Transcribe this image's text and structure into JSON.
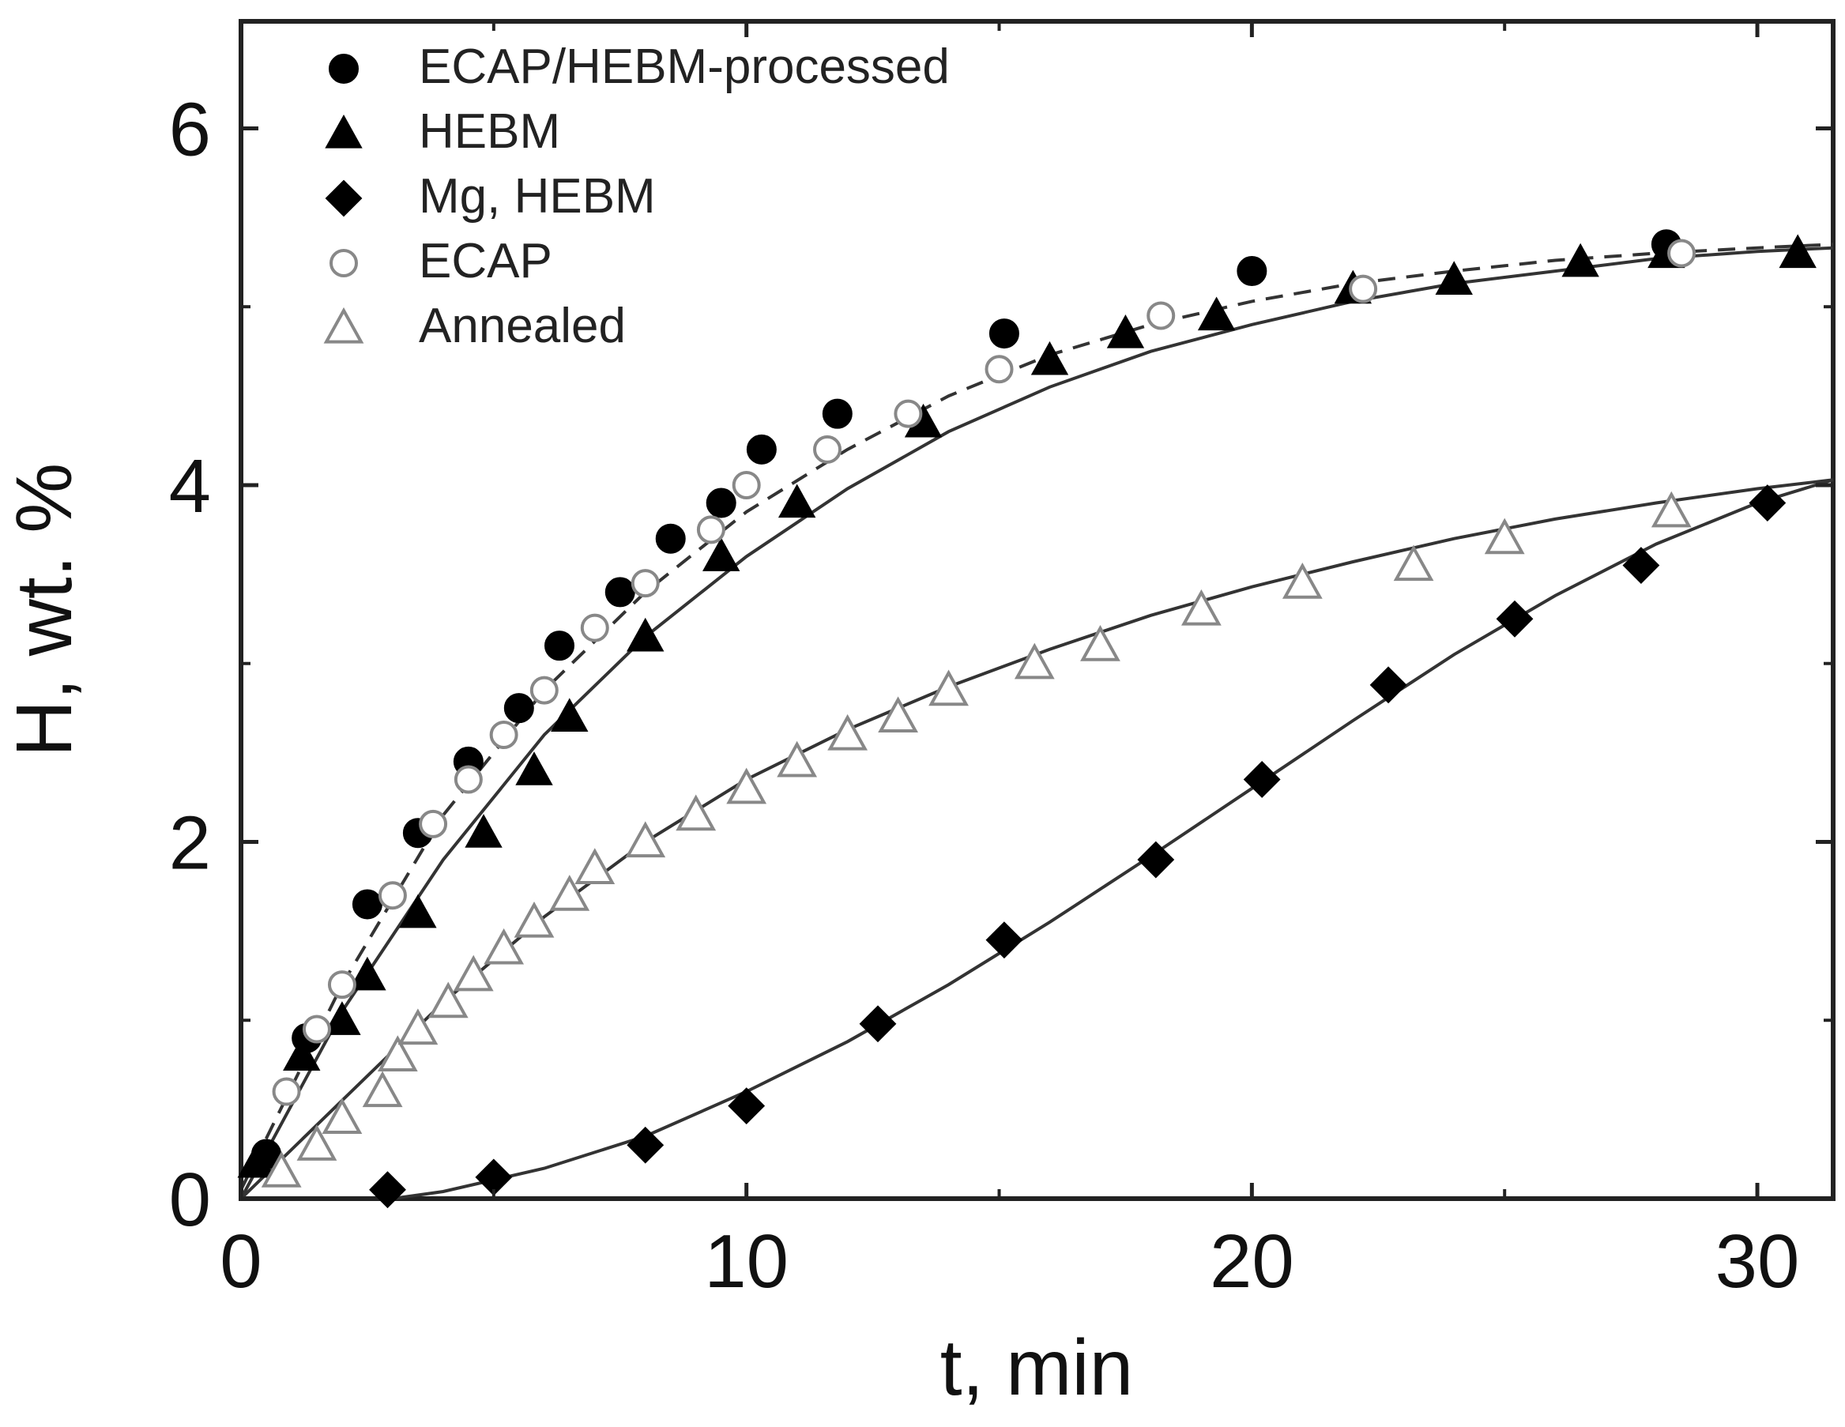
{
  "chart_data": {
    "type": "scatter",
    "xlabel": "t, min",
    "ylabel": "H, wt. %",
    "xlim": [
      0,
      31.5
    ],
    "ylim": [
      0,
      6.6
    ],
    "x_ticks": [
      "0",
      "10",
      "20",
      "30"
    ],
    "y_ticks": [
      "0",
      "2",
      "4",
      "6"
    ],
    "legend_position": "top-left",
    "series": [
      {
        "name": "ECAP/HEBM-processed",
        "marker": "filled-circle",
        "color": "#000000",
        "points": [
          [
            0.5,
            0.25
          ],
          [
            1.3,
            0.9
          ],
          [
            2.5,
            1.65
          ],
          [
            3.5,
            2.05
          ],
          [
            4.5,
            2.45
          ],
          [
            5.5,
            2.75
          ],
          [
            6.3,
            3.1
          ],
          [
            7.5,
            3.4
          ],
          [
            8.5,
            3.7
          ],
          [
            9.5,
            3.9
          ],
          [
            10.3,
            4.2
          ],
          [
            11.8,
            4.4
          ],
          [
            15.1,
            4.85
          ],
          [
            20,
            5.2
          ],
          [
            28.2,
            5.35
          ]
        ]
      },
      {
        "name": "HEBM",
        "marker": "filled-triangle",
        "color": "#000000",
        "points": [
          [
            0.3,
            0.2
          ],
          [
            1.2,
            0.8
          ],
          [
            2,
            1.0
          ],
          [
            2.5,
            1.25
          ],
          [
            3.5,
            1.6
          ],
          [
            4.8,
            2.05
          ],
          [
            5.8,
            2.4
          ],
          [
            6.5,
            2.7
          ],
          [
            8,
            3.15
          ],
          [
            9.5,
            3.6
          ],
          [
            11,
            3.9
          ],
          [
            13.5,
            4.35
          ],
          [
            16,
            4.7
          ],
          [
            17.5,
            4.85
          ],
          [
            19.3,
            4.95
          ],
          [
            22,
            5.1
          ],
          [
            24,
            5.15
          ],
          [
            26.5,
            5.25
          ],
          [
            28.2,
            5.3
          ],
          [
            30.8,
            5.3
          ]
        ]
      },
      {
        "name": "Mg, HEBM",
        "marker": "filled-diamond",
        "color": "#000000",
        "points": [
          [
            2.9,
            0.05
          ],
          [
            5,
            0.12
          ],
          [
            8,
            0.3
          ],
          [
            10,
            0.52
          ],
          [
            12.6,
            0.98
          ],
          [
            15.1,
            1.45
          ],
          [
            18.1,
            1.9
          ],
          [
            20.2,
            2.35
          ],
          [
            22.7,
            2.88
          ],
          [
            25.2,
            3.25
          ],
          [
            27.7,
            3.55
          ],
          [
            30.2,
            3.9
          ]
        ]
      },
      {
        "name": "ECAP",
        "marker": "open-circle",
        "color": "#888888",
        "points": [
          [
            0.9,
            0.6
          ],
          [
            1.5,
            0.95
          ],
          [
            2,
            1.2
          ],
          [
            3,
            1.7
          ],
          [
            3.8,
            2.1
          ],
          [
            4.5,
            2.35
          ],
          [
            5.2,
            2.6
          ],
          [
            6,
            2.85
          ],
          [
            7,
            3.2
          ],
          [
            8,
            3.45
          ],
          [
            9.3,
            3.75
          ],
          [
            10,
            4.0
          ],
          [
            11.6,
            4.2
          ],
          [
            13.2,
            4.4
          ],
          [
            15,
            4.65
          ],
          [
            18.2,
            4.95
          ],
          [
            22.2,
            5.1
          ],
          [
            28.5,
            5.3
          ]
        ]
      },
      {
        "name": "Annealed",
        "marker": "open-triangle",
        "color": "#888888",
        "points": [
          [
            0.8,
            0.15
          ],
          [
            1.5,
            0.3
          ],
          [
            2,
            0.45
          ],
          [
            2.8,
            0.6
          ],
          [
            3.1,
            0.8
          ],
          [
            3.5,
            0.95
          ],
          [
            4.1,
            1.1
          ],
          [
            4.6,
            1.25
          ],
          [
            5.2,
            1.4
          ],
          [
            5.8,
            1.55
          ],
          [
            6.5,
            1.7
          ],
          [
            7,
            1.85
          ],
          [
            8,
            2.0
          ],
          [
            9,
            2.15
          ],
          [
            10,
            2.3
          ],
          [
            11,
            2.45
          ],
          [
            12,
            2.6
          ],
          [
            13,
            2.7
          ],
          [
            14,
            2.85
          ],
          [
            15.7,
            3.0
          ],
          [
            17,
            3.1
          ],
          [
            19,
            3.3
          ],
          [
            21,
            3.45
          ],
          [
            23.2,
            3.55
          ],
          [
            25,
            3.7
          ],
          [
            28.3,
            3.85
          ]
        ]
      }
    ],
    "fit_curves": [
      {
        "style": "solid",
        "points": [
          [
            0,
            0
          ],
          [
            2,
            1.05
          ],
          [
            4,
            1.9
          ],
          [
            6,
            2.6
          ],
          [
            8,
            3.15
          ],
          [
            10,
            3.6
          ],
          [
            12,
            3.98
          ],
          [
            14,
            4.3
          ],
          [
            16,
            4.55
          ],
          [
            18,
            4.75
          ],
          [
            20,
            4.9
          ],
          [
            22,
            5.03
          ],
          [
            24,
            5.13
          ],
          [
            26,
            5.2
          ],
          [
            28,
            5.27
          ],
          [
            30,
            5.31
          ],
          [
            31.5,
            5.33
          ]
        ]
      },
      {
        "style": "dashed",
        "points": [
          [
            0,
            0.05
          ],
          [
            2,
            1.2
          ],
          [
            4,
            2.15
          ],
          [
            6,
            2.85
          ],
          [
            8,
            3.4
          ],
          [
            10,
            3.85
          ],
          [
            12,
            4.2
          ],
          [
            14,
            4.5
          ],
          [
            16,
            4.73
          ],
          [
            18,
            4.9
          ],
          [
            20,
            5.03
          ],
          [
            22,
            5.13
          ],
          [
            24,
            5.2
          ],
          [
            26,
            5.26
          ],
          [
            28,
            5.3
          ],
          [
            30,
            5.33
          ],
          [
            31.5,
            5.35
          ]
        ]
      },
      {
        "style": "solid",
        "points": [
          [
            0,
            0
          ],
          [
            2,
            0.55
          ],
          [
            4,
            1.1
          ],
          [
            6,
            1.58
          ],
          [
            8,
            2.0
          ],
          [
            10,
            2.35
          ],
          [
            12,
            2.63
          ],
          [
            14,
            2.87
          ],
          [
            16,
            3.08
          ],
          [
            18,
            3.27
          ],
          [
            20,
            3.43
          ],
          [
            22,
            3.57
          ],
          [
            24,
            3.7
          ],
          [
            26,
            3.81
          ],
          [
            28,
            3.9
          ],
          [
            30,
            3.98
          ],
          [
            31.5,
            4.03
          ]
        ]
      },
      {
        "style": "solid",
        "points": [
          [
            3,
            0
          ],
          [
            4,
            0.04
          ],
          [
            6,
            0.17
          ],
          [
            8,
            0.35
          ],
          [
            10,
            0.6
          ],
          [
            12,
            0.88
          ],
          [
            14,
            1.2
          ],
          [
            16,
            1.55
          ],
          [
            18,
            1.92
          ],
          [
            20,
            2.3
          ],
          [
            22,
            2.68
          ],
          [
            24,
            3.05
          ],
          [
            26,
            3.38
          ],
          [
            28,
            3.67
          ],
          [
            30,
            3.9
          ],
          [
            31.5,
            4.03
          ]
        ]
      }
    ]
  }
}
